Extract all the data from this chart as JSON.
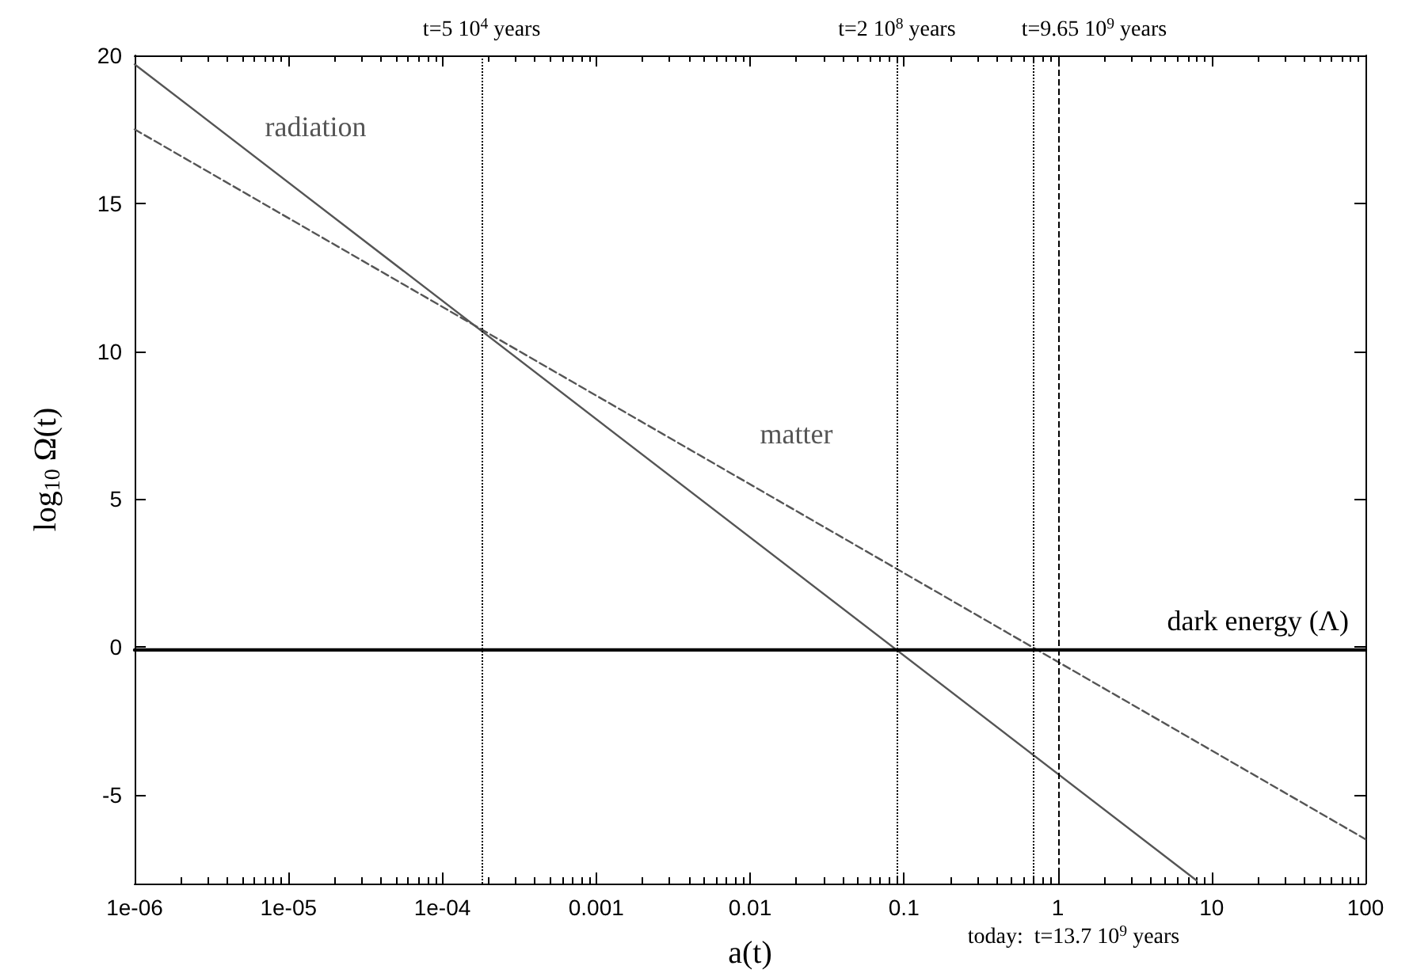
{
  "chart_data": {
    "type": "line",
    "xlabel": "a(t)",
    "ylabel": "log$_{10}$ Ω(t)",
    "log": "x",
    "xlim": [
      1e-06,
      100
    ],
    "xticks": [
      {
        "value": 1e-06,
        "label": "1e-06"
      },
      {
        "value": 1e-05,
        "label": "1e-05"
      },
      {
        "value": 0.0001,
        "label": "1e-04"
      },
      {
        "value": 0.001,
        "label": "0.001"
      },
      {
        "value": 0.01,
        "label": "0.01"
      },
      {
        "value": 0.1,
        "label": "0.1"
      },
      1,
      10,
      100
    ],
    "ylim": [
      -8,
      20
    ],
    "yticks": [
      -5,
      0,
      5,
      10,
      15,
      20
    ],
    "grid": false,
    "legend": false,
    "marker": "none",
    "series": [
      {
        "name": "radiation",
        "color": "#555555",
        "line_style": "solid",
        "x": [
          1e-06,
          8
        ],
        "values": [
          19.7,
          -7.9
        ]
      },
      {
        "name": "matter",
        "color": "#555555",
        "line_style": "dashed",
        "x": [
          1e-06,
          100
        ],
        "values": [
          17.5,
          -6.5
        ]
      },
      {
        "name": "dark energy (Λ)",
        "color": "#000000",
        "line_style": "solid",
        "x": [
          1e-06,
          100
        ],
        "values": [
          -0.1,
          -0.1
        ]
      }
    ],
    "ref_lines": [
      {
        "axis": "x",
        "value": 0.00018,
        "line_style": "dotted",
        "color": "#000000"
      },
      {
        "axis": "x",
        "value": 0.09,
        "line_style": "dotted",
        "color": "#000000"
      },
      {
        "axis": "x",
        "value": 0.7,
        "line_style": "dotted",
        "color": "#000000"
      },
      {
        "axis": "x",
        "value": 1,
        "line_style": "dashed",
        "color": "#000000"
      }
    ],
    "annotations": [
      "t=5 10$^{4}$ years",
      "t=2 10$^{8}$ years",
      "t=9.65 10$^{9}$ years",
      "today:  t=13.7 10$^{9}$ years"
    ]
  }
}
